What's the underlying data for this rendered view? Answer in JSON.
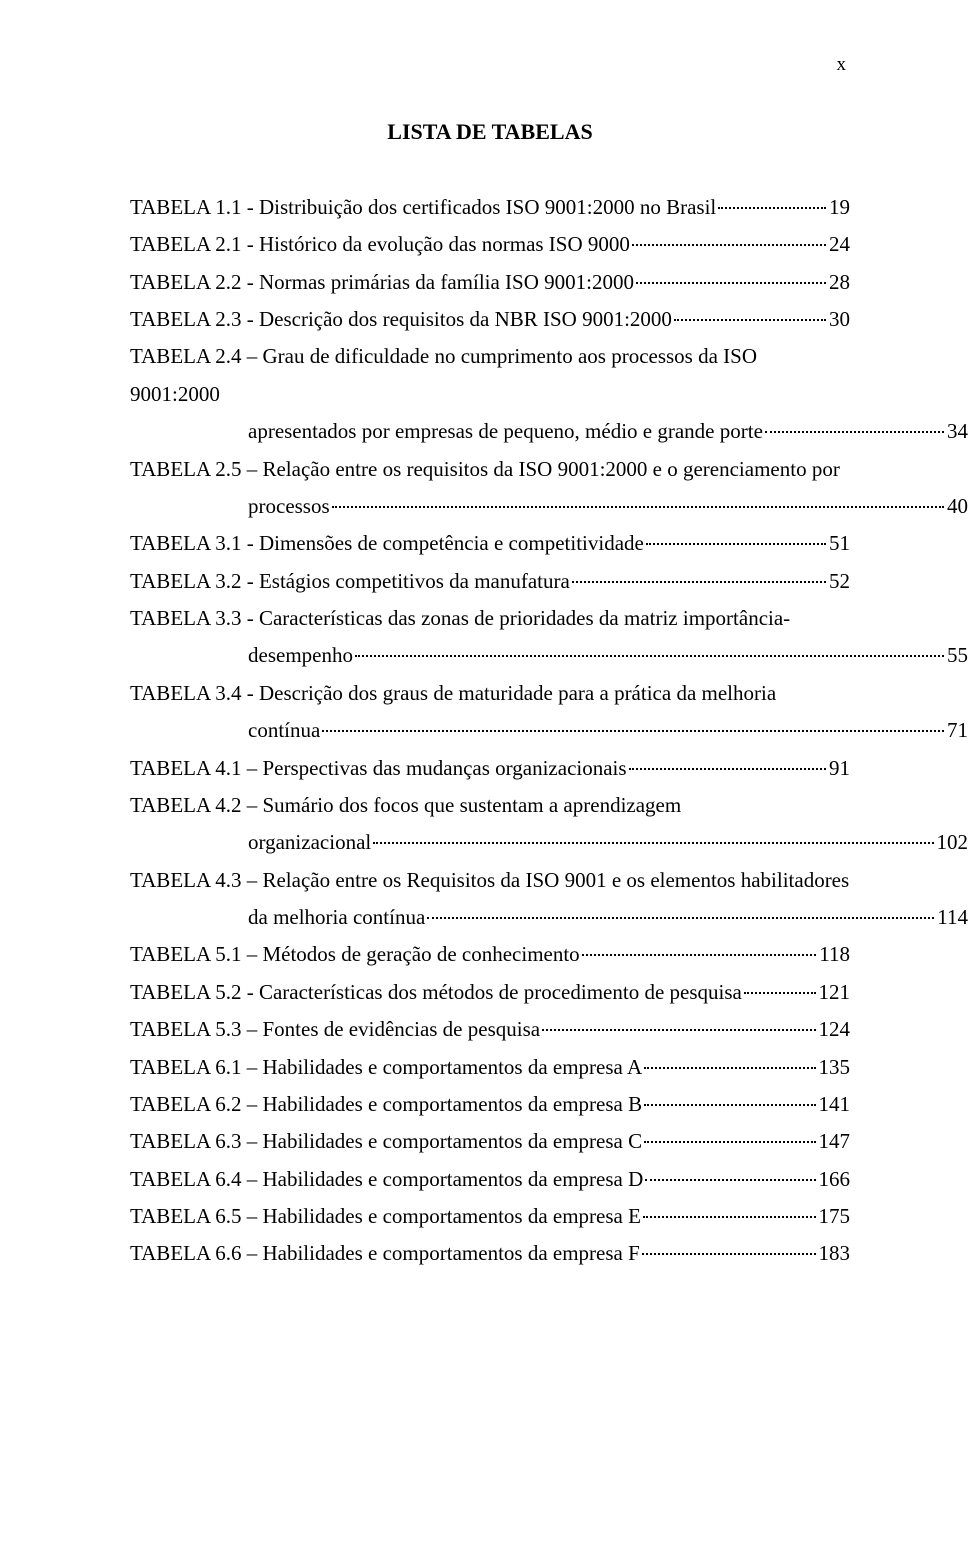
{
  "page_number_label": "x",
  "title": "LISTA DE TABELAS",
  "entries": [
    {
      "label": "TABELA 1.1 - Distribuição dos certificados ISO 9001:2000 no Brasil",
      "page": "19"
    },
    {
      "label": "TABELA 2.1 - Histórico da evolução das normas ISO 9000",
      "page": "24"
    },
    {
      "label": "TABELA 2.2 - Normas primárias da família ISO 9001:2000",
      "page": "28"
    },
    {
      "label": "TABELA 2.3 - Descrição dos requisitos da NBR ISO 9001:2000",
      "page": "30"
    },
    {
      "label": "TABELA 2.4 – Grau de dificuldade no cumprimento aos processos da ISO 9001:2000",
      "cont": [
        {
          "text": "apresentados por empresas de pequeno, médio e grande porte",
          "page": " 34"
        }
      ]
    },
    {
      "label": "TABELA 2.5 – Relação entre os requisitos da ISO 9001:2000 e o gerenciamento por",
      "cont": [
        {
          "text": "processos",
          "page": "40"
        }
      ]
    },
    {
      "label": "TABELA 3.1 - Dimensões de competência e competitividade",
      "page": "51"
    },
    {
      "label": "TABELA 3.2 - Estágios competitivos da manufatura",
      "page": "52"
    },
    {
      "label": "TABELA 3.3 - Características das zonas de prioridades da matriz importância-",
      "cont": [
        {
          "text": "desempenho",
          "page": "55"
        }
      ]
    },
    {
      "label": "TABELA 3.4 - Descrição dos graus de maturidade para a prática da melhoria",
      "cont": [
        {
          "text": "contínua",
          "page": "71"
        }
      ]
    },
    {
      "label": "TABELA 4.1 – Perspectivas das mudanças organizacionais",
      "page": "91"
    },
    {
      "label": "TABELA 4.2 – Sumário dos focos que sustentam a aprendizagem",
      "cont": [
        {
          "text": "organizacional",
          "page": "102"
        }
      ]
    },
    {
      "label": "TABELA 4.3 – Relação entre os Requisitos da ISO 9001 e os elementos habilitadores",
      "cont": [
        {
          "text": "da melhoria contínua",
          "page": "114"
        }
      ]
    },
    {
      "label": "TABELA 5.1 – Métodos de geração de conhecimento",
      "page": "118"
    },
    {
      "label": "TABELA 5.2 - Características dos métodos de procedimento de pesquisa",
      "page": "121"
    },
    {
      "label": "TABELA 5.3 – Fontes de evidências de pesquisa",
      "page": "124"
    },
    {
      "label": "TABELA 6.1 – Habilidades e comportamentos da empresa A",
      "page": "135"
    },
    {
      "label": "TABELA 6.2 – Habilidades e comportamentos da empresa B",
      "page": "141"
    },
    {
      "label": "TABELA 6.3 – Habilidades e comportamentos da empresa C",
      "page": "147"
    },
    {
      "label": "TABELA 6.4 – Habilidades e comportamentos da empresa D",
      "page": "166"
    },
    {
      "label": "TABELA 6.5 – Habilidades e comportamentos da empresa E",
      "page": "175"
    },
    {
      "label": "TABELA 6.6 – Habilidades e comportamentos da empresa F",
      "page": "183"
    }
  ]
}
